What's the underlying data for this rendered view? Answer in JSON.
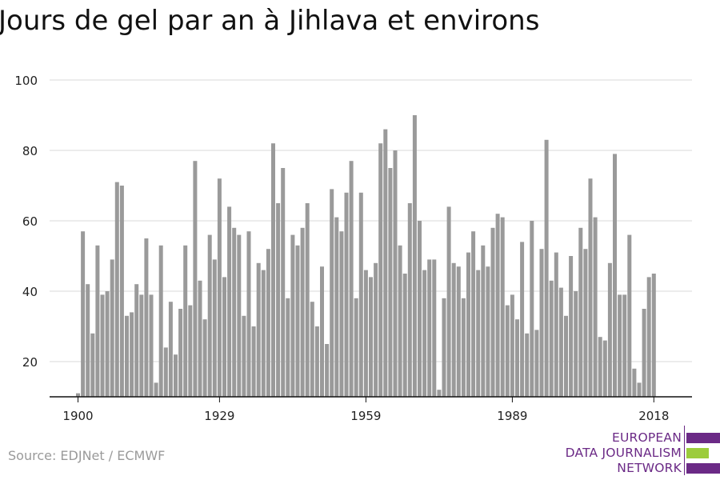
{
  "title": "Jours de gel par an à Jihlava et environs",
  "source": "Source: EDJNet / ECMWF",
  "logo": {
    "lines": [
      "EUROPEAN",
      "DATA JOURNALISM",
      "NETWORK"
    ],
    "colors": {
      "purple": "#6b2a86",
      "green": "#9ccc3c"
    }
  },
  "chart_data": {
    "type": "bar",
    "title": "Jours de gel par an à Jihlava et environs",
    "xlabel": "",
    "ylabel": "",
    "x_start": 1900,
    "x_ticks": [
      "1900",
      "1929",
      "1959",
      "1989",
      "2018"
    ],
    "y_ticks": [
      20,
      40,
      60,
      80,
      100
    ],
    "ylim": [
      10,
      100
    ],
    "grid": true,
    "bar_color": "#9a9a9a",
    "years": [
      1900,
      1901,
      1902,
      1903,
      1904,
      1905,
      1906,
      1907,
      1908,
      1909,
      1910,
      1911,
      1912,
      1913,
      1914,
      1915,
      1916,
      1917,
      1918,
      1919,
      1920,
      1921,
      1922,
      1923,
      1924,
      1925,
      1926,
      1927,
      1928,
      1929,
      1930,
      1931,
      1932,
      1933,
      1934,
      1935,
      1936,
      1937,
      1938,
      1939,
      1940,
      1941,
      1942,
      1943,
      1944,
      1945,
      1946,
      1947,
      1948,
      1949,
      1950,
      1951,
      1952,
      1953,
      1954,
      1955,
      1956,
      1957,
      1958,
      1959,
      1960,
      1961,
      1962,
      1963,
      1964,
      1965,
      1966,
      1967,
      1968,
      1969,
      1970,
      1971,
      1972,
      1973,
      1974,
      1975,
      1976,
      1977,
      1978,
      1979,
      1980,
      1981,
      1982,
      1983,
      1984,
      1985,
      1986,
      1987,
      1988,
      1989,
      1990,
      1991,
      1992,
      1993,
      1994,
      1995,
      1996,
      1997,
      1998,
      1999,
      2000,
      2001,
      2002,
      2003,
      2004,
      2005,
      2006,
      2007,
      2008,
      2009,
      2010,
      2011,
      2012,
      2013,
      2014,
      2015,
      2016,
      2017,
      2018
    ],
    "values": [
      11,
      57,
      42,
      28,
      53,
      39,
      40,
      49,
      71,
      70,
      33,
      34,
      42,
      39,
      55,
      39,
      14,
      53,
      24,
      37,
      22,
      35,
      53,
      36,
      77,
      43,
      32,
      56,
      49,
      72,
      44,
      64,
      58,
      56,
      33,
      57,
      30,
      48,
      46,
      52,
      82,
      65,
      75,
      38,
      56,
      53,
      58,
      65,
      37,
      30,
      47,
      25,
      69,
      61,
      57,
      68,
      77,
      38,
      68,
      46,
      44,
      48,
      82,
      86,
      75,
      80,
      53,
      45,
      65,
      90,
      60,
      46,
      49,
      49,
      12,
      38,
      64,
      48,
      47,
      38,
      51,
      57,
      46,
      53,
      47,
      58,
      62,
      61,
      36,
      39,
      32,
      54,
      28,
      60,
      29,
      52,
      83,
      43,
      51,
      41,
      33,
      50,
      40,
      58,
      52,
      72,
      61,
      27,
      26,
      48,
      79,
      39,
      39,
      56,
      18,
      14,
      35,
      44,
      45
    ]
  }
}
